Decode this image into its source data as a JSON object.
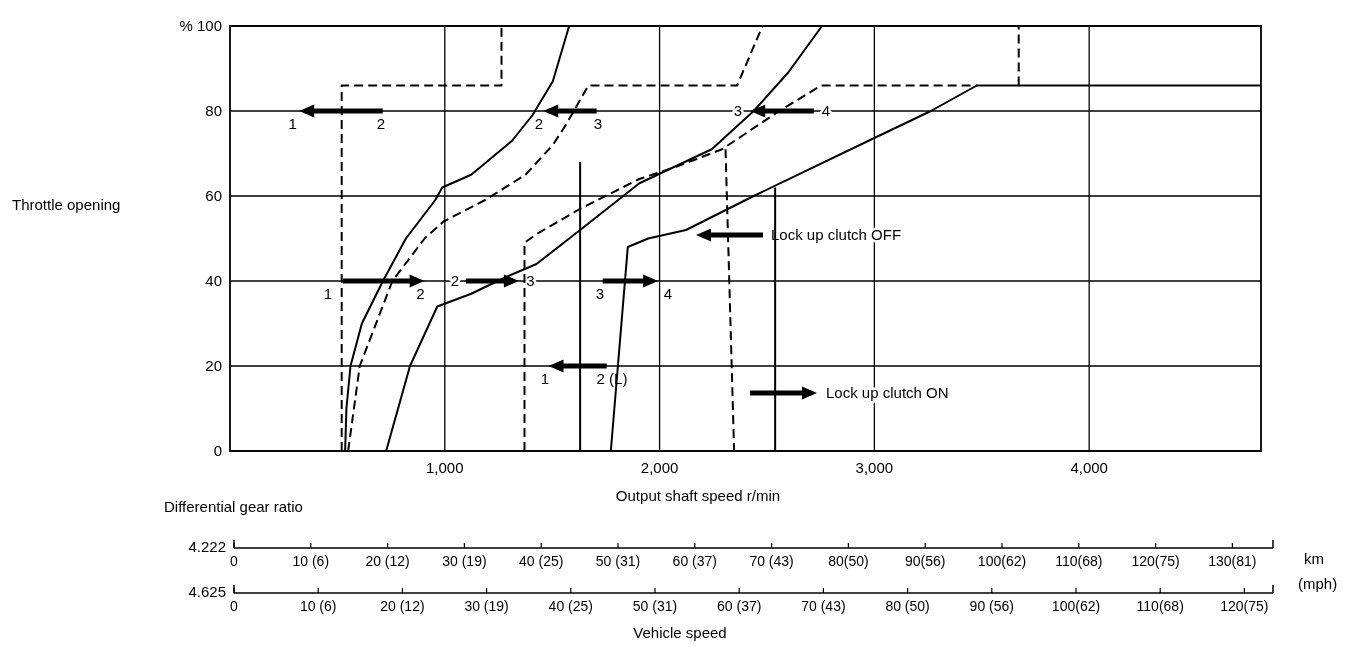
{
  "chart_data": {
    "type": "line",
    "xlabel": "Output shaft speed r/min",
    "ylabel": "Throttle opening",
    "xlim": [
      0,
      4800
    ],
    "ylim": [
      0,
      100
    ],
    "xticks": [
      {
        "value": 1000,
        "label": "1,000"
      },
      {
        "value": 2000,
        "label": "2,000"
      },
      {
        "value": 3000,
        "label": "3,000"
      },
      {
        "value": 4000,
        "label": "4,000"
      }
    ],
    "yticks": [
      0,
      20,
      40,
      60,
      80,
      {
        "value": 100,
        "label": "% 100"
      }
    ],
    "grid": true,
    "series": [
      {
        "type": "line",
        "color": "#000000",
        "line_style": "solid",
        "x": [
          536,
          542,
          561,
          614,
          712,
          819,
          955,
          988,
          1123,
          1313,
          1408,
          1503,
          1579
        ],
        "values": [
          0,
          10,
          20,
          30,
          40,
          50,
          59,
          62,
          65,
          73,
          79,
          87,
          100
        ]
      },
      {
        "type": "line",
        "color": "#000000",
        "line_style": "dashed",
        "x": [
          520,
          520,
          1264,
          1264
        ],
        "values": [
          0,
          86,
          86,
          100
        ]
      },
      {
        "type": "line",
        "color": "#000000",
        "line_style": "dashed",
        "x": [
          550,
          604,
          756,
          906,
          994,
          1186,
          1376,
          1503,
          1567,
          1668,
          2361,
          2479
        ],
        "values": [
          0,
          20,
          40,
          50,
          54,
          59,
          65,
          72,
          77,
          86,
          86,
          100
        ]
      },
      {
        "type": "line",
        "color": "#000000",
        "line_style": "solid",
        "x": [
          727,
          838,
          965,
          1123,
          1288,
          1427,
          1630,
          1906,
          2243,
          2438,
          2598,
          2756
        ],
        "values": [
          0,
          20,
          34,
          37,
          41,
          44,
          52,
          63,
          71,
          80,
          89,
          100
        ]
      },
      {
        "type": "line",
        "color": "#000000",
        "line_style": "dashed",
        "x": [
          1371,
          1371,
          1427,
          1630,
          1906,
          2084,
          2291,
          2557,
          2752,
          3477
        ],
        "values": [
          0,
          49,
          51,
          57,
          64,
          67,
          71,
          80,
          86,
          86
        ]
      },
      {
        "type": "line",
        "color": "#000000",
        "line_style": "solid",
        "x": [
          1773,
          1852,
          1947,
          2123,
          2438,
          2973,
          3263,
          3477,
          4800
        ],
        "values": [
          0,
          48,
          50,
          52,
          60,
          73,
          80,
          86,
          86
        ]
      },
      {
        "type": "line",
        "color": "#000000",
        "line_style": "dashed",
        "x": [
          3672,
          3672
        ],
        "values": [
          86,
          100
        ]
      },
      {
        "type": "line",
        "color": "#000000",
        "line_style": "dashed",
        "x": [
          2307,
          2347
        ],
        "values": [
          71,
          0
        ]
      },
      {
        "type": "line",
        "color": "#000000",
        "line_style": "solid",
        "x": [
          2538,
          2538
        ],
        "values": [
          0,
          62
        ]
      },
      {
        "type": "line",
        "color": "#000000",
        "line_style": "solid",
        "x": [
          1630,
          1630
        ],
        "values": [
          0,
          68
        ]
      }
    ],
    "annotations": [
      "2",
      "1",
      "3",
      "2",
      "4",
      "3",
      "1",
      "2",
      "2",
      "3",
      "3",
      "4",
      "2 (L)",
      "1",
      "Lock up clutch OFF",
      "Lock up clutch ON",
      "Differential gear ratio",
      "Vehicle speed",
      "km",
      "(mph)",
      "4.222",
      "0",
      "10 (6)",
      "20 (12)",
      "30 (19)",
      "40 (25)",
      "50 (31)",
      "60 (37)",
      "70 (43)",
      "80(50)",
      "90(56)",
      "100(62)",
      "110(68)",
      "120(75)",
      "130(81)",
      "4.625",
      "0",
      "10 (6)",
      "20 (12)",
      "30 (19)",
      "40 (25)",
      "50 (31)",
      "60 (37)",
      "70 (43)",
      "80 (50)",
      "90 (56)",
      "100(62)",
      "110(68)",
      "120(75)"
    ]
  }
}
